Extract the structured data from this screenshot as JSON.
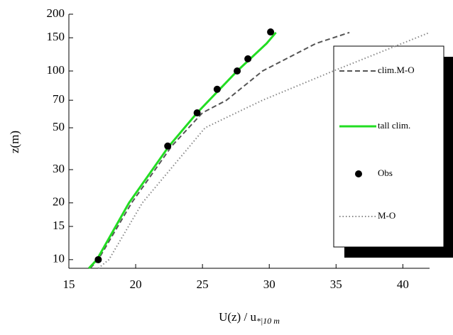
{
  "chart_data": {
    "type": "line",
    "x_label": "U(z) / u",
    "x_label_sub": "*|10 m",
    "y_label": "z(m)",
    "xlim": [
      15,
      42
    ],
    "xticks": [
      15,
      20,
      25,
      30,
      35,
      40
    ],
    "ylim": [
      9,
      200
    ],
    "yticks": [
      10,
      15,
      20,
      30,
      50,
      70,
      100,
      150,
      200
    ],
    "log_y": true,
    "legend": "right",
    "series": [
      {
        "name": "clim.M-O",
        "color": "#555555",
        "style": "dashed",
        "x": [
          16.6,
          17.2,
          19.7,
          22.7,
          25.0,
          26.8,
          29.5,
          33.5,
          36.0
        ],
        "values": [
          9,
          10,
          20,
          40,
          60,
          70,
          100,
          140,
          160
        ]
      },
      {
        "name": "tall clim.",
        "color": "#22dd22",
        "style": "solid",
        "x": [
          16.5,
          17.1,
          19.5,
          22.5,
          24.6,
          27.6,
          29.8,
          30.5
        ],
        "values": [
          9,
          10,
          20,
          40,
          60,
          100,
          140,
          160
        ]
      },
      {
        "name": "Obs",
        "color": "#000000",
        "style": "points",
        "x": [
          17.2,
          22.4,
          24.6,
          26.1,
          27.6,
          28.4,
          30.1
        ],
        "values": [
          10,
          40,
          60,
          80,
          100,
          116,
          161
        ]
      },
      {
        "name": "M-O",
        "color": "#888888",
        "style": "dotted",
        "x": [
          17.2,
          18.0,
          20.5,
          25.2,
          29.5,
          34.8,
          42.0
        ],
        "values": [
          9,
          10,
          20,
          50,
          70,
          100,
          160
        ]
      }
    ]
  }
}
